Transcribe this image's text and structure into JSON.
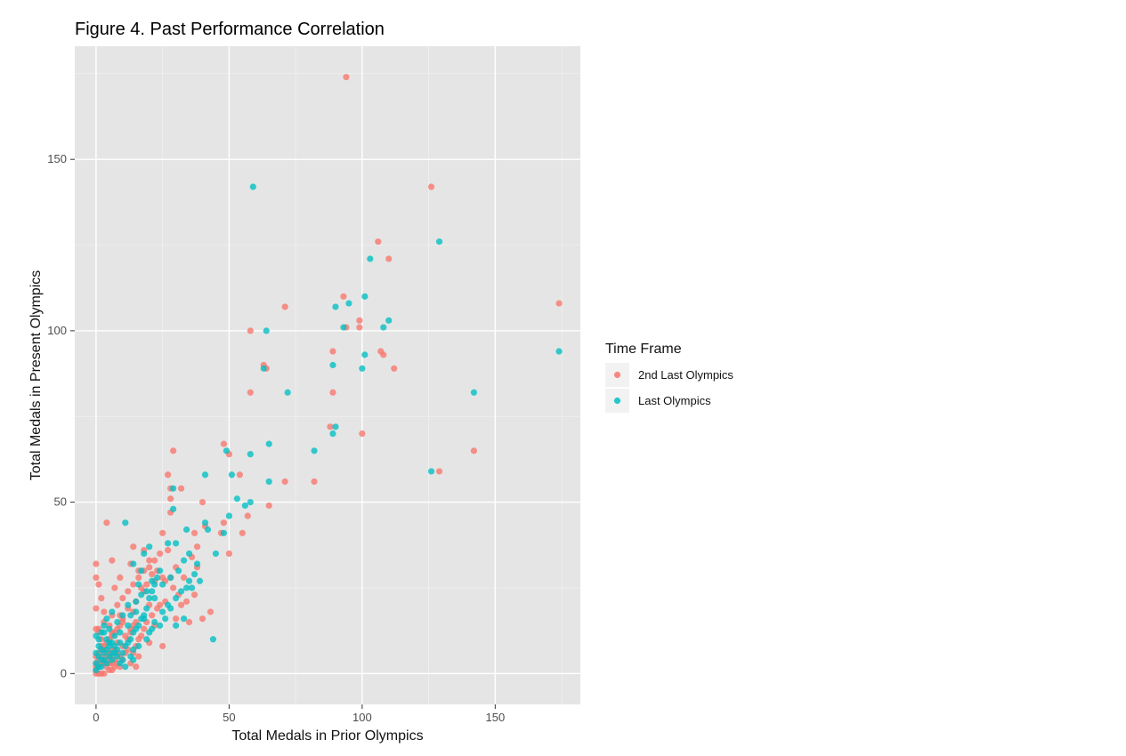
{
  "chart_data": {
    "type": "scatter",
    "title": "Figure 4. Past Performance Correlation",
    "xlabel": "Total Medals in Prior Olympics",
    "ylabel": "Total Medals in Present Olympics",
    "xlim": [
      -8,
      182
    ],
    "ylim": [
      -9,
      183
    ],
    "x_ticks": [
      0,
      50,
      100,
      150
    ],
    "y_ticks": [
      0,
      50,
      100,
      150
    ],
    "x_tick_labels": [
      "0",
      "50",
      "100",
      "150"
    ],
    "y_tick_labels": [
      "0",
      "50",
      "100",
      "150"
    ],
    "grid": true,
    "panel_background": "#e5e5e5",
    "legend_position": "right",
    "legend_title": "Time Frame",
    "series": [
      {
        "name": "2nd Last Olympics",
        "color": "#F8766D",
        "points": [
          [
            94,
            174
          ],
          [
            126,
            142
          ],
          [
            174,
            108
          ],
          [
            106,
            126
          ],
          [
            110,
            121
          ],
          [
            93,
            110
          ],
          [
            99,
            103
          ],
          [
            71,
            107
          ],
          [
            58,
            100
          ],
          [
            94,
            101
          ],
          [
            99,
            101
          ],
          [
            107,
            94
          ],
          [
            108,
            93
          ],
          [
            112,
            89
          ],
          [
            64,
            89
          ],
          [
            63,
            90
          ],
          [
            58,
            82
          ],
          [
            89,
            94
          ],
          [
            89,
            82
          ],
          [
            100,
            70
          ],
          [
            88,
            72
          ],
          [
            142,
            65
          ],
          [
            129,
            59
          ],
          [
            48,
            67
          ],
          [
            50,
            64
          ],
          [
            82,
            56
          ],
          [
            71,
            56
          ],
          [
            54,
            58
          ],
          [
            65,
            49
          ],
          [
            57,
            46
          ],
          [
            55,
            41
          ],
          [
            29,
            65
          ],
          [
            27,
            58
          ],
          [
            28,
            54
          ],
          [
            32,
            54
          ],
          [
            28,
            51
          ],
          [
            28,
            47
          ],
          [
            40,
            50
          ],
          [
            41,
            43
          ],
          [
            48,
            44
          ],
          [
            47,
            41
          ],
          [
            50,
            35
          ],
          [
            37,
            41
          ],
          [
            38,
            37
          ],
          [
            36,
            34
          ],
          [
            27,
            36
          ],
          [
            25,
            41
          ],
          [
            18,
            36
          ],
          [
            4,
            44
          ],
          [
            6,
            33
          ],
          [
            0,
            32
          ],
          [
            14,
            37
          ],
          [
            13,
            32
          ],
          [
            16,
            30
          ],
          [
            20,
            33
          ],
          [
            22,
            27
          ],
          [
            25,
            28
          ],
          [
            28,
            28
          ],
          [
            30,
            31
          ],
          [
            33,
            28
          ],
          [
            38,
            31
          ],
          [
            37,
            23
          ],
          [
            43,
            18
          ],
          [
            40,
            16
          ],
          [
            35,
            15
          ],
          [
            32,
            20
          ],
          [
            30,
            16
          ],
          [
            24,
            20
          ],
          [
            18,
            24
          ],
          [
            20,
            20
          ],
          [
            14,
            18
          ],
          [
            10,
            22
          ],
          [
            8,
            20
          ],
          [
            7,
            25
          ],
          [
            9,
            28
          ],
          [
            3,
            18
          ],
          [
            5,
            14
          ],
          [
            6,
            12
          ],
          [
            10,
            16
          ],
          [
            11,
            11
          ],
          [
            13,
            13
          ],
          [
            12,
            7
          ],
          [
            16,
            10
          ],
          [
            20,
            9
          ],
          [
            22,
            14
          ],
          [
            25,
            8
          ],
          [
            16,
            5
          ],
          [
            15,
            2
          ],
          [
            10,
            4
          ],
          [
            8,
            9
          ],
          [
            6,
            5
          ],
          [
            4,
            4
          ],
          [
            3,
            7
          ],
          [
            2,
            10
          ],
          [
            1,
            12
          ],
          [
            0,
            1
          ],
          [
            1,
            2
          ],
          [
            2,
            3
          ],
          [
            3,
            0
          ],
          [
            4,
            2
          ],
          [
            5,
            1
          ],
          [
            6,
            3
          ],
          [
            7,
            2
          ],
          [
            0,
            5
          ],
          [
            1,
            6
          ],
          [
            2,
            7
          ],
          [
            3,
            8
          ],
          [
            4,
            9
          ],
          [
            5,
            10
          ],
          [
            6,
            11
          ],
          [
            7,
            12
          ],
          [
            8,
            13
          ],
          [
            9,
            14
          ],
          [
            10,
            15
          ],
          [
            0,
            13
          ],
          [
            1,
            13
          ],
          [
            2,
            8
          ],
          [
            3,
            4
          ],
          [
            4,
            6
          ],
          [
            5,
            6
          ],
          [
            6,
            7
          ],
          [
            7,
            7
          ],
          [
            8,
            6
          ],
          [
            9,
            5
          ],
          [
            0,
            28
          ],
          [
            0,
            19
          ],
          [
            1,
            26
          ],
          [
            2,
            22
          ],
          [
            3,
            15
          ],
          [
            6,
            17
          ],
          [
            9,
            17
          ],
          [
            12,
            19
          ],
          [
            15,
            21
          ],
          [
            17,
            25
          ],
          [
            19,
            26
          ],
          [
            21,
            29
          ],
          [
            23,
            30
          ],
          [
            26,
            27
          ],
          [
            29,
            25
          ],
          [
            31,
            23
          ],
          [
            34,
            21
          ],
          [
            12,
            24
          ],
          [
            14,
            26
          ],
          [
            16,
            28
          ],
          [
            18,
            30
          ],
          [
            20,
            31
          ],
          [
            22,
            33
          ],
          [
            24,
            35
          ],
          [
            13,
            3
          ],
          [
            14,
            6
          ],
          [
            15,
            8
          ],
          [
            17,
            11
          ],
          [
            18,
            13
          ],
          [
            19,
            15
          ],
          [
            21,
            17
          ],
          [
            23,
            19
          ],
          [
            26,
            21
          ],
          [
            0,
            0
          ],
          [
            1,
            0
          ],
          [
            2,
            0
          ],
          [
            0,
            2
          ],
          [
            0,
            3
          ],
          [
            1,
            4
          ],
          [
            2,
            5
          ],
          [
            3,
            3
          ],
          [
            4,
            5
          ],
          [
            5,
            3
          ],
          [
            6,
            1
          ],
          [
            7,
            4
          ],
          [
            8,
            3
          ],
          [
            9,
            2
          ],
          [
            10,
            8
          ],
          [
            11,
            6
          ],
          [
            12,
            10
          ],
          [
            13,
            12
          ],
          [
            14,
            14
          ],
          [
            15,
            15
          ]
        ]
      },
      {
        "name": "Last Olympics",
        "color": "#00BFC4",
        "points": [
          [
            59,
            142
          ],
          [
            129,
            126
          ],
          [
            103,
            121
          ],
          [
            101,
            110
          ],
          [
            110,
            103
          ],
          [
            95,
            108
          ],
          [
            90,
            107
          ],
          [
            93,
            101
          ],
          [
            108,
            101
          ],
          [
            64,
            100
          ],
          [
            174,
            94
          ],
          [
            101,
            93
          ],
          [
            100,
            89
          ],
          [
            89,
            90
          ],
          [
            63,
            89
          ],
          [
            72,
            82
          ],
          [
            142,
            82
          ],
          [
            89,
            70
          ],
          [
            90,
            72
          ],
          [
            82,
            65
          ],
          [
            126,
            59
          ],
          [
            65,
            67
          ],
          [
            49,
            65
          ],
          [
            58,
            64
          ],
          [
            51,
            58
          ],
          [
            65,
            56
          ],
          [
            50,
            46
          ],
          [
            53,
            51
          ],
          [
            56,
            49
          ],
          [
            58,
            50
          ],
          [
            41,
            58
          ],
          [
            29,
            54
          ],
          [
            29,
            48
          ],
          [
            41,
            44
          ],
          [
            48,
            41
          ],
          [
            45,
            35
          ],
          [
            44,
            10
          ],
          [
            42,
            42
          ],
          [
            34,
            42
          ],
          [
            35,
            35
          ],
          [
            33,
            33
          ],
          [
            30,
            38
          ],
          [
            27,
            38
          ],
          [
            31,
            30
          ],
          [
            28,
            28
          ],
          [
            24,
            30
          ],
          [
            20,
            37
          ],
          [
            18,
            35
          ],
          [
            17,
            30
          ],
          [
            11,
            44
          ],
          [
            14,
            32
          ],
          [
            16,
            26
          ],
          [
            22,
            22
          ],
          [
            25,
            26
          ],
          [
            27,
            20
          ],
          [
            30,
            14
          ],
          [
            33,
            16
          ],
          [
            34,
            25
          ],
          [
            36,
            25
          ],
          [
            38,
            32
          ],
          [
            39,
            27
          ],
          [
            25,
            18
          ],
          [
            22,
            15
          ],
          [
            20,
            12
          ],
          [
            18,
            16
          ],
          [
            15,
            18
          ],
          [
            12,
            20
          ],
          [
            10,
            17
          ],
          [
            9,
            12
          ],
          [
            8,
            15
          ],
          [
            6,
            18
          ],
          [
            5,
            13
          ],
          [
            4,
            10
          ],
          [
            3,
            12
          ],
          [
            2,
            7
          ],
          [
            1,
            5
          ],
          [
            0,
            11
          ],
          [
            1,
            10
          ],
          [
            2,
            12
          ],
          [
            3,
            14
          ],
          [
            4,
            16
          ],
          [
            5,
            8
          ],
          [
            6,
            9
          ],
          [
            7,
            11
          ],
          [
            8,
            7
          ],
          [
            9,
            9
          ],
          [
            10,
            6
          ],
          [
            11,
            8
          ],
          [
            12,
            9
          ],
          [
            13,
            10
          ],
          [
            14,
            12
          ],
          [
            15,
            13
          ],
          [
            16,
            14
          ],
          [
            17,
            16
          ],
          [
            18,
            17
          ],
          [
            19,
            19
          ],
          [
            20,
            22
          ],
          [
            21,
            24
          ],
          [
            22,
            26
          ],
          [
            23,
            28
          ],
          [
            0,
            1
          ],
          [
            0,
            3
          ],
          [
            1,
            2
          ],
          [
            2,
            2
          ],
          [
            3,
            4
          ],
          [
            4,
            3
          ],
          [
            5,
            5
          ],
          [
            6,
            4
          ],
          [
            7,
            6
          ],
          [
            8,
            5
          ],
          [
            9,
            3
          ],
          [
            10,
            4
          ],
          [
            11,
            2
          ],
          [
            13,
            5
          ],
          [
            14,
            7
          ],
          [
            0,
            6
          ],
          [
            1,
            8
          ],
          [
            2,
            4
          ],
          [
            3,
            6
          ],
          [
            4,
            7
          ],
          [
            5,
            9
          ],
          [
            6,
            6
          ],
          [
            7,
            8
          ],
          [
            14,
            4
          ],
          [
            16,
            8
          ],
          [
            19,
            10
          ],
          [
            21,
            13
          ],
          [
            24,
            14
          ],
          [
            26,
            16
          ],
          [
            28,
            19
          ],
          [
            30,
            22
          ],
          [
            32,
            24
          ],
          [
            35,
            27
          ],
          [
            37,
            29
          ],
          [
            12,
            14
          ],
          [
            13,
            17
          ],
          [
            15,
            21
          ],
          [
            17,
            23
          ],
          [
            19,
            24
          ],
          [
            21,
            27
          ]
        ]
      }
    ]
  }
}
